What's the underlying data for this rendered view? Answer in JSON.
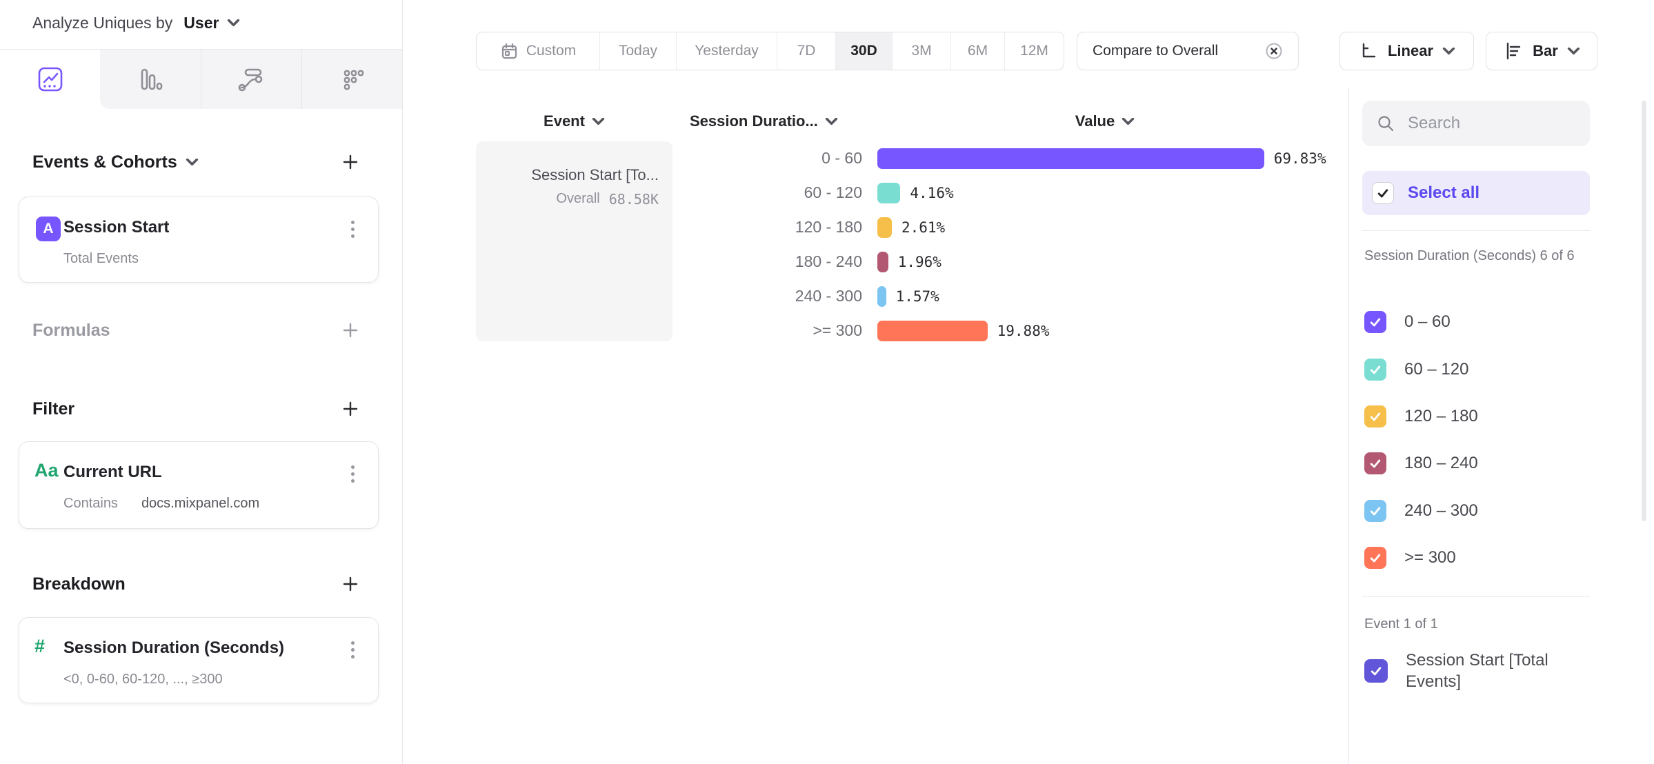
{
  "header": {
    "analyze_label": "Analyze Uniques by",
    "analyze_value": "User"
  },
  "view_tabs": [
    {
      "icon": "line-chart-icon",
      "active": true
    },
    {
      "icon": "bar-chart-icon",
      "active": false
    },
    {
      "icon": "flow-chart-icon",
      "active": false
    },
    {
      "icon": "metrics-grid-icon",
      "active": false
    }
  ],
  "left_panel": {
    "events_section": {
      "title": "Events & Cohorts"
    },
    "event_card": {
      "badge": "A",
      "title": "Session Start",
      "subtitle": "Total Events"
    },
    "formulas_section": {
      "title": "Formulas"
    },
    "filter_section": {
      "title": "Filter"
    },
    "filter_card": {
      "badge": "Aa",
      "title": "Current URL",
      "operator": "Contains",
      "value": "docs.mixpanel.com"
    },
    "breakdown_section": {
      "title": "Breakdown"
    },
    "breakdown_card": {
      "glyph": "#",
      "title": "Session Duration (Seconds)",
      "subtitle": "<0, 0-60, 60-120, ..., ≥300"
    }
  },
  "toolbar": {
    "date_ranges": [
      {
        "label": "Custom",
        "icon": "calendar-icon",
        "selected": false
      },
      {
        "label": "Today",
        "selected": false
      },
      {
        "label": "Yesterday",
        "selected": false
      },
      {
        "label": "7D",
        "selected": false
      },
      {
        "label": "30D",
        "selected": true
      },
      {
        "label": "3M",
        "selected": false
      },
      {
        "label": "6M",
        "selected": false
      },
      {
        "label": "12M",
        "selected": false
      }
    ],
    "compare": {
      "label": "Compare to Overall",
      "icon": "circle-x-icon"
    },
    "scale": {
      "label": "Linear",
      "icon": "axis-icon"
    },
    "chart_type": {
      "label": "Bar",
      "icon": "horizontal-bars-icon"
    }
  },
  "table": {
    "headers": {
      "event": "Event",
      "breakdown": "Session Duratio...",
      "value": "Value"
    },
    "event_cell": {
      "title": "Session Start [To...",
      "overall_label": "Overall",
      "overall_value": "68.58K"
    }
  },
  "chart_data": {
    "type": "bar",
    "orientation": "horizontal",
    "title": "",
    "xlabel": "Value",
    "ylabel": "Session Duration (Seconds)",
    "unit": "percent",
    "xlim": [
      0,
      100
    ],
    "categories": [
      "0 - 60",
      "60 - 120",
      "120 - 180",
      "180 - 240",
      "240 - 300",
      ">= 300"
    ],
    "values": [
      69.83,
      4.16,
      2.61,
      1.96,
      1.57,
      19.88
    ],
    "rows": [
      {
        "label": "0 - 60",
        "value": 69.83,
        "display": "69.83%",
        "color": "#7856ff"
      },
      {
        "label": "60 - 120",
        "value": 4.16,
        "display": "4.16%",
        "color": "#79ddd2"
      },
      {
        "label": "120 - 180",
        "value": 2.61,
        "display": "2.61%",
        "color": "#f6bf4a"
      },
      {
        "label": "180 - 240",
        "value": 1.96,
        "display": "1.96%",
        "color": "#b35872"
      },
      {
        "label": "240 - 300",
        "value": 1.57,
        "display": "1.57%",
        "color": "#7cc4f2"
      },
      {
        "label": ">= 300",
        "value": 19.88,
        "display": "19.88%",
        "color": "#fe7558"
      }
    ]
  },
  "sidebar": {
    "search_placeholder": "Search",
    "select_all_label": "Select all",
    "breakdown_group_label": "Session Duration (Seconds) 6 of 6",
    "items": [
      {
        "label": "0 – 60",
        "color": "#7856ff",
        "checked": true
      },
      {
        "label": "60 – 120",
        "color": "#79ddd2",
        "checked": true
      },
      {
        "label": "120 – 180",
        "color": "#f6bf4a",
        "checked": true
      },
      {
        "label": "180 – 240",
        "color": "#b35872",
        "checked": true
      },
      {
        "label": "240 – 300",
        "color": "#7cc4f2",
        "checked": true
      },
      {
        "label": ">= 300",
        "color": "#fe7558",
        "checked": true
      }
    ],
    "event_group_label": "Event 1 of 1",
    "event_item": {
      "label": "Session Start [Total Events]",
      "color": "#6156d9",
      "checked": true
    }
  }
}
